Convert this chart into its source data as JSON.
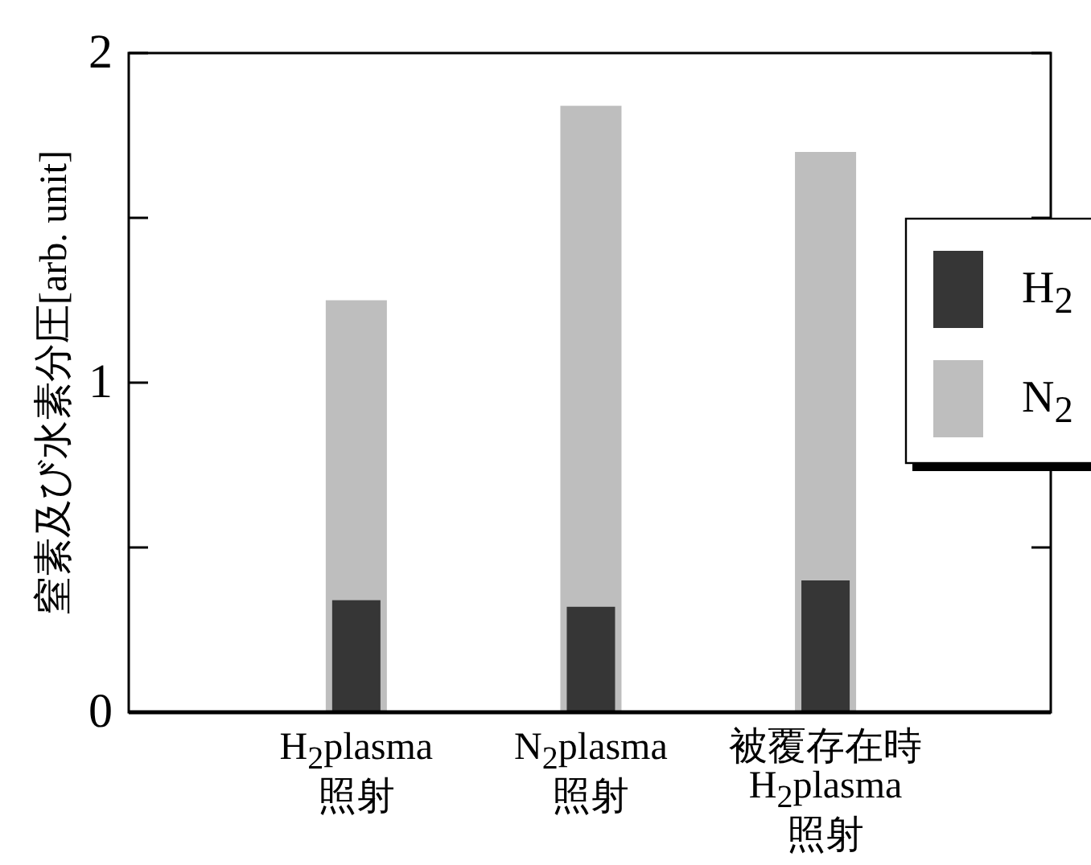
{
  "chart_data": {
    "type": "bar",
    "ylabel": "窒素及び水素分圧[arb. unit]",
    "categories": [
      "H$_{2}$plasma 照射",
      "N$_{2}$plasma 照射",
      "被覆存在時 H$_{2}$plasma 照射"
    ],
    "series": [
      {
        "name": "H$_{2}$",
        "color": "#363636",
        "values": [
          0.34,
          0.32,
          0.4
        ]
      },
      {
        "name": "N$_{2}$",
        "color": "#bebebe",
        "values": [
          1.25,
          1.84,
          1.7
        ]
      }
    ],
    "ylim": [
      0,
      2
    ],
    "yticks": [
      0,
      {
        "value": 0.5,
        "label": null
      },
      1,
      {
        "value": 1.5,
        "label": null
      },
      2
    ],
    "legend": "right"
  }
}
